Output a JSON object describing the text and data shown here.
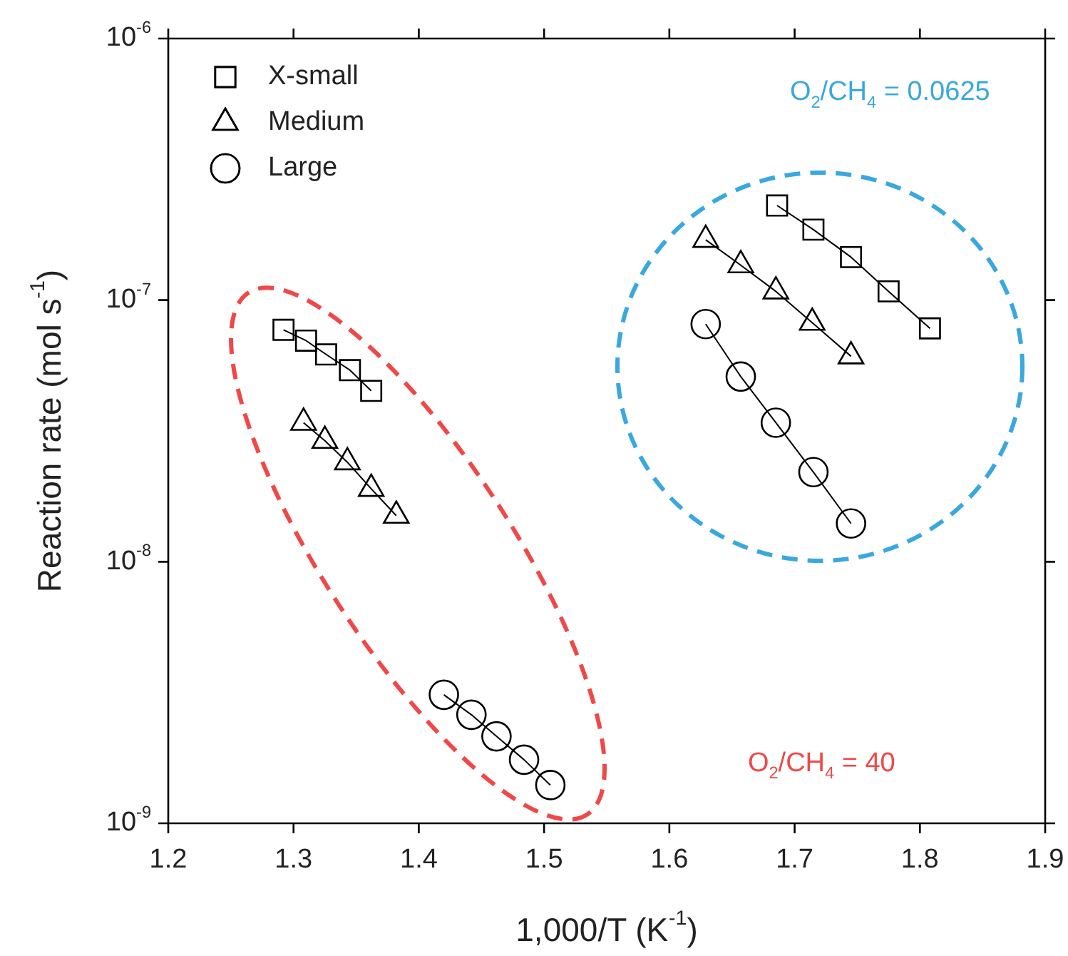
{
  "chart_data": {
    "type": "line",
    "xlabel": "1,000/T (K$^{-1}$)",
    "ylabel": "Reaction rate (mol s$^{-1}$)",
    "xlim": [
      1.2,
      1.9
    ],
    "xticks": [
      1.2,
      1.3,
      1.4,
      1.5,
      1.6,
      1.7,
      1.8,
      1.9
    ],
    "ylim": [
      1e-09,
      1e-06
    ],
    "yticks": [
      {
        "value": 1e-09,
        "label": "10$^{-9}$"
      },
      {
        "value": 1e-08,
        "label": "10$^{-8}$"
      },
      {
        "value": 1e-07,
        "label": "10$^{-7}$"
      },
      {
        "value": 1e-06,
        "label": "10$^{-6}$"
      }
    ],
    "log": true,
    "grid": false,
    "legend": "top left",
    "series": [
      {
        "name": "X-small",
        "color": "#000000",
        "marker": "square",
        "x": [
          1.292,
          1.31,
          1.326,
          1.345,
          1.362
        ],
        "values": [
          7.7e-08,
          7e-08,
          6.2e-08,
          5.4e-08,
          4.5e-08
        ]
      },
      {
        "name": "Medium",
        "color": "#000000",
        "marker": "triangle",
        "x": [
          1.308,
          1.325,
          1.343,
          1.362,
          1.382
        ],
        "values": [
          3.4e-08,
          2.9e-08,
          2.4e-08,
          1.9e-08,
          1.5e-08
        ]
      },
      {
        "name": "Large",
        "color": "#000000",
        "marker": "circle",
        "x": [
          1.42,
          1.442,
          1.462,
          1.484,
          1.505
        ],
        "values": [
          3.1e-09,
          2.6e-09,
          2.15e-09,
          1.75e-09,
          1.4e-09
        ]
      },
      {
        "color": "#000000",
        "marker": "square",
        "x": [
          1.686,
          1.715,
          1.745,
          1.775,
          1.808
        ],
        "values": [
          2.3e-07,
          1.86e-07,
          1.46e-07,
          1.08e-07,
          7.8e-08
        ]
      },
      {
        "color": "#000000",
        "marker": "triangle",
        "x": [
          1.629,
          1.657,
          1.685,
          1.714,
          1.745
        ],
        "values": [
          1.7e-07,
          1.36e-07,
          1.08e-07,
          8.2e-08,
          6.1e-08
        ]
      },
      {
        "color": "#000000",
        "marker": "circle",
        "x": [
          1.629,
          1.657,
          1.685,
          1.715,
          1.745
        ],
        "values": [
          8.1e-08,
          5.1e-08,
          3.4e-08,
          2.2e-08,
          1.4e-08
        ]
      }
    ],
    "annotations": [
      "O$_{2}$/CH$_{4}$ = 0.0625",
      "O$_{2}$/CH$_{4}$ = 40"
    ]
  }
}
